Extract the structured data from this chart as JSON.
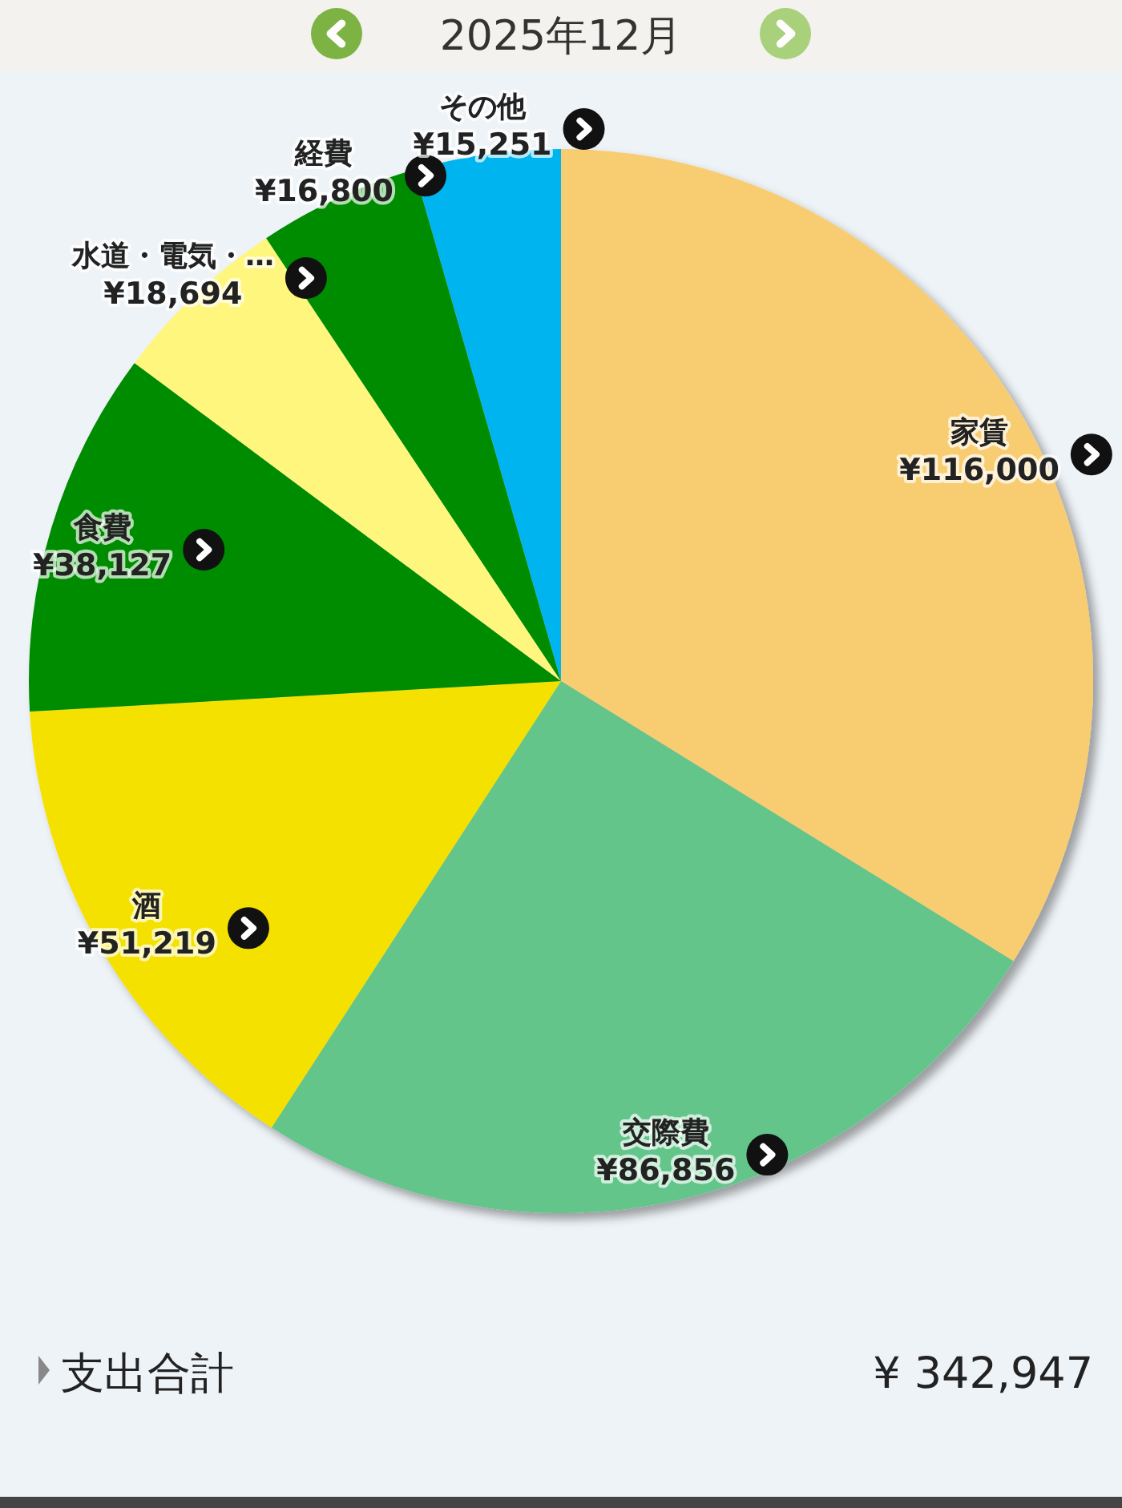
{
  "chart_data": {
    "type": "pie",
    "title": "2025年12月",
    "categories": [
      "家賃",
      "交際費",
      "酒",
      "食費",
      "水道・電気・…",
      "経費",
      "その他"
    ],
    "values": [
      116000,
      86856,
      51219,
      38127,
      18694,
      16800,
      15251
    ],
    "colors": [
      "#f8cd72",
      "#63c58a",
      "#f5e100",
      "#008c00",
      "#fff67e",
      "#008c00",
      "#00b5ef"
    ],
    "value_labels": [
      "¥116,000",
      "¥86,856",
      "¥51,219",
      "¥38,127",
      "¥18,694",
      "¥16,800",
      "¥15,251"
    ],
    "annotations": [
      "支出合計",
      "¥ 342,947"
    ]
  }
}
